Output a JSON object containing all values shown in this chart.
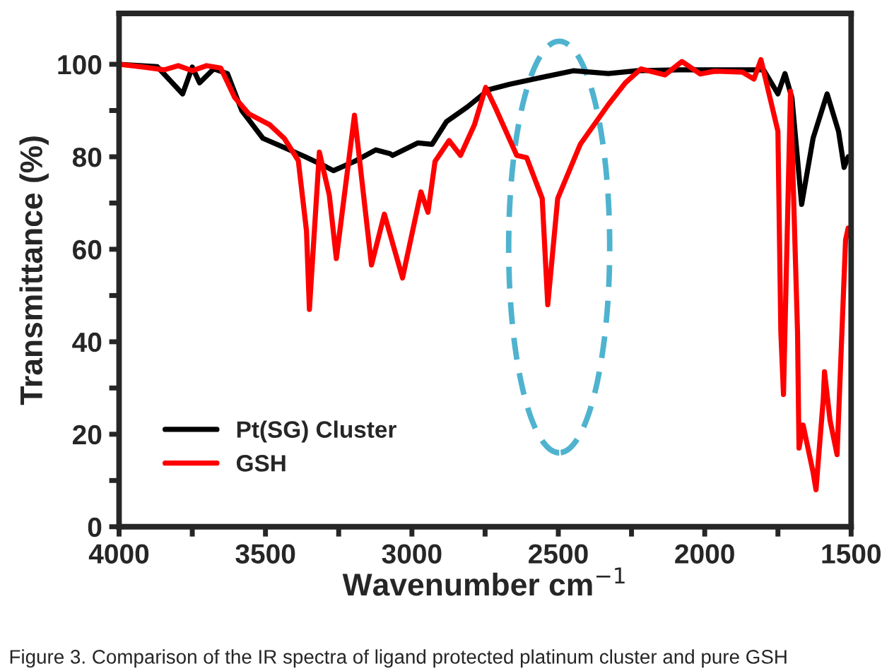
{
  "chart_data": {
    "type": "line",
    "xlabel": "Wavenumber cm$^{−1}$",
    "ylabel": "Transmittance (%)",
    "xlim": [
      4000,
      1500
    ],
    "ylim": [
      0,
      111
    ],
    "xticks": [
      4000,
      {
        "value": 3750,
        "label": null
      },
      3500,
      {
        "value": 3250,
        "label": null
      },
      3000,
      {
        "value": 2750,
        "label": null
      },
      2500,
      {
        "value": 2250,
        "label": null
      },
      2000,
      {
        "value": 1750,
        "label": null
      },
      1500
    ],
    "yticks": [
      0,
      {
        "value": 10,
        "label": null
      },
      20,
      {
        "value": 30,
        "label": null
      },
      40,
      {
        "value": 50,
        "label": null
      },
      60,
      {
        "value": 70,
        "label": null
      },
      80,
      {
        "value": 90,
        "label": null
      },
      100
    ],
    "grid": false,
    "legend": "bottom left",
    "line_style": "solid",
    "annotations": [
      "Figure 3. Comparison of the IR spectra of ligand protected platinum cluster and pure GSH"
    ],
    "series": [
      {
        "name": "Pt(SG) Cluster",
        "color": "#000000",
        "x": [
          4000,
          3870,
          3783,
          3750,
          3725,
          3677,
          3630,
          3581,
          3509,
          3436,
          3364,
          3292,
          3268,
          3196,
          3123,
          3075,
          3066,
          2979,
          2931,
          2882,
          2810,
          2738,
          2666,
          2570,
          2449,
          2329,
          2232,
          2088,
          1895,
          1799,
          1750,
          1726,
          1702,
          1669,
          1630,
          1582,
          1543,
          1524,
          1510
        ],
        "values": [
          100,
          99.5,
          93.6,
          99.4,
          96,
          99,
          98,
          90,
          84,
          82,
          80,
          77.8,
          77,
          79,
          81.5,
          80.7,
          80.3,
          83,
          82.7,
          87.6,
          90.8,
          94.5,
          95.7,
          97,
          98.6,
          98,
          98.6,
          98.8,
          98.8,
          98.8,
          93.6,
          98,
          92.7,
          69.7,
          84,
          93.6,
          85.5,
          77.7,
          80
        ]
      },
      {
        "name": "GSH",
        "color": "#ff0000",
        "x": [
          4000,
          3918,
          3846,
          3798,
          3750,
          3701,
          3653,
          3605,
          3557,
          3485,
          3436,
          3388,
          3360,
          3350,
          3316,
          3282,
          3258,
          3196,
          3138,
          3094,
          3032,
          2969,
          2945,
          2921,
          2873,
          2834,
          2786,
          2748,
          2714,
          2642,
          2608,
          2555,
          2536,
          2502,
          2425,
          2329,
          2271,
          2218,
          2136,
          2078,
          2015,
          1967,
          1871,
          1832,
          1808,
          1750,
          1740,
          1731,
          1707,
          1683,
          1678,
          1664,
          1630,
          1620,
          1595,
          1591,
          1572,
          1548,
          1519,
          1510
        ],
        "values": [
          100,
          99.4,
          98.8,
          99.7,
          98.6,
          99.7,
          99.2,
          92.8,
          89.3,
          86.9,
          84,
          79.2,
          64,
          47,
          81,
          71.7,
          58,
          89,
          56.6,
          67.6,
          53.8,
          72.4,
          68,
          79,
          83.5,
          80.3,
          87,
          95,
          90.5,
          80.3,
          79.8,
          71,
          48,
          71,
          82.7,
          91.3,
          96,
          99,
          97.7,
          100.6,
          97.9,
          98.5,
          98.3,
          96.8,
          101,
          85.5,
          42,
          28.6,
          94.2,
          42,
          17,
          22,
          11.8,
          8,
          27.7,
          33.5,
          23,
          15.6,
          62,
          64.6
        ]
      }
    ]
  }
}
